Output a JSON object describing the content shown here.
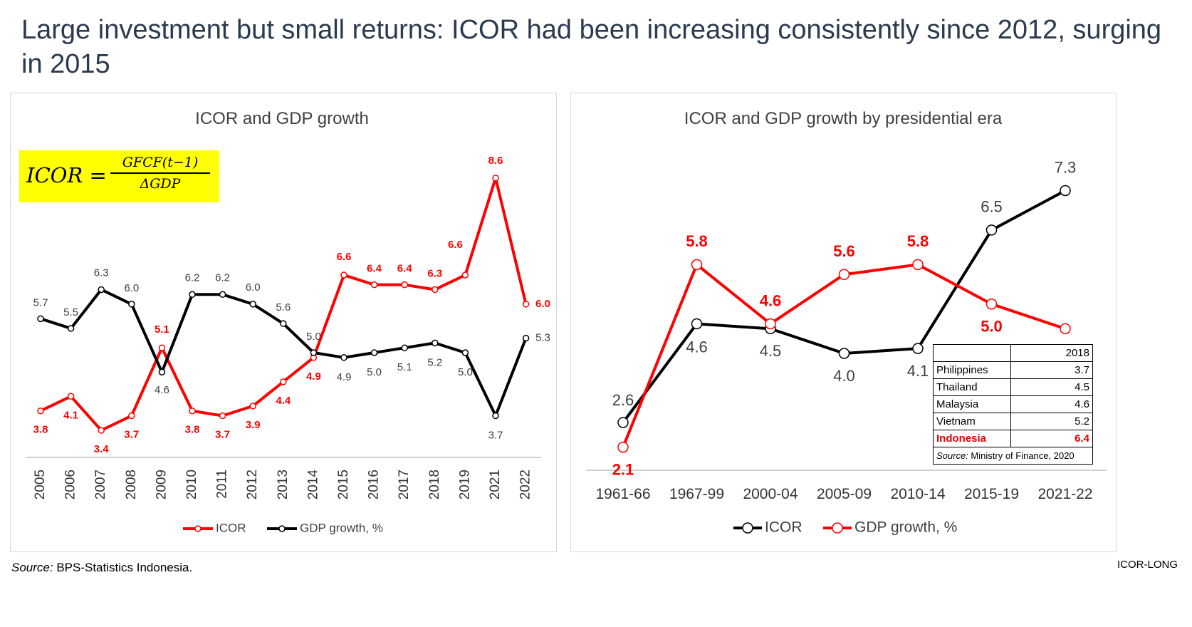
{
  "title": "Large investment but small returns: ICOR had been increasing consistently since 2012, surging in 2015",
  "source_label": "Source:",
  "source_text": " BPS-Statistics Indonesia.",
  "tag": "ICOR-LONG",
  "colors": {
    "red": "#ff0000",
    "black": "#000000",
    "axis": "#bfbfbf",
    "formula_bg": "#ffff00"
  },
  "formula": {
    "lhs": "ICOR =",
    "numerator": "GFCF(t−1)",
    "denominator": "ΔGDP"
  },
  "comparison_table": {
    "header": [
      "",
      "2018"
    ],
    "rows": [
      {
        "country": "Philippines",
        "value": "3.7"
      },
      {
        "country": "Thailand",
        "value": "4.5"
      },
      {
        "country": "Malaysia",
        "value": "4.6"
      },
      {
        "country": "Vietnam",
        "value": "5.2"
      },
      {
        "country": "Indonesia",
        "value": "6.4"
      }
    ],
    "source_label": "Source:",
    "source_text": " Ministry of Finance, 2020"
  },
  "chart_data": [
    {
      "type": "line",
      "title": "ICOR and GDP growth",
      "categories": [
        "2005",
        "2006",
        "2007",
        "2008",
        "2009",
        "2010",
        "2011",
        "2012",
        "2013",
        "2014",
        "2015",
        "2016",
        "2017",
        "2018",
        "2019",
        "2021",
        "2022"
      ],
      "series": [
        {
          "name": "ICOR",
          "color": "#ff0000",
          "values": [
            3.8,
            4.1,
            3.4,
            3.7,
            5.1,
            3.8,
            3.7,
            3.9,
            4.4,
            4.9,
            6.6,
            6.4,
            6.4,
            6.3,
            6.6,
            8.6,
            6.0
          ]
        },
        {
          "name": "GDP growth, %",
          "color": "#000000",
          "values": [
            5.7,
            5.5,
            6.3,
            6.0,
            4.6,
            6.2,
            6.2,
            6.0,
            5.6,
            5.0,
            4.9,
            5.0,
            5.1,
            5.2,
            5.0,
            3.7,
            5.3
          ]
        }
      ],
      "xlabel": "",
      "ylabel": "",
      "ylim": [
        2.9,
        9.2
      ],
      "legend": "bottom"
    },
    {
      "type": "line",
      "title": "ICOR and GDP growth by presidential era",
      "categories": [
        "1961-66",
        "1967-99",
        "2000-04",
        "2005-09",
        "2010-14",
        "2015-19",
        "2021-22"
      ],
      "series": [
        {
          "name": "ICOR",
          "color": "#000000",
          "values": [
            2.6,
            4.6,
            4.5,
            4.0,
            4.1,
            6.5,
            7.3
          ]
        },
        {
          "name": "GDP growth, %",
          "color": "#ff0000",
          "values": [
            2.1,
            5.8,
            4.6,
            5.6,
            5.8,
            5.0,
            4.5
          ]
        }
      ],
      "xlabel": "",
      "ylabel": "",
      "ylim": [
        1.3,
        8.0
      ],
      "legend": "bottom"
    }
  ]
}
